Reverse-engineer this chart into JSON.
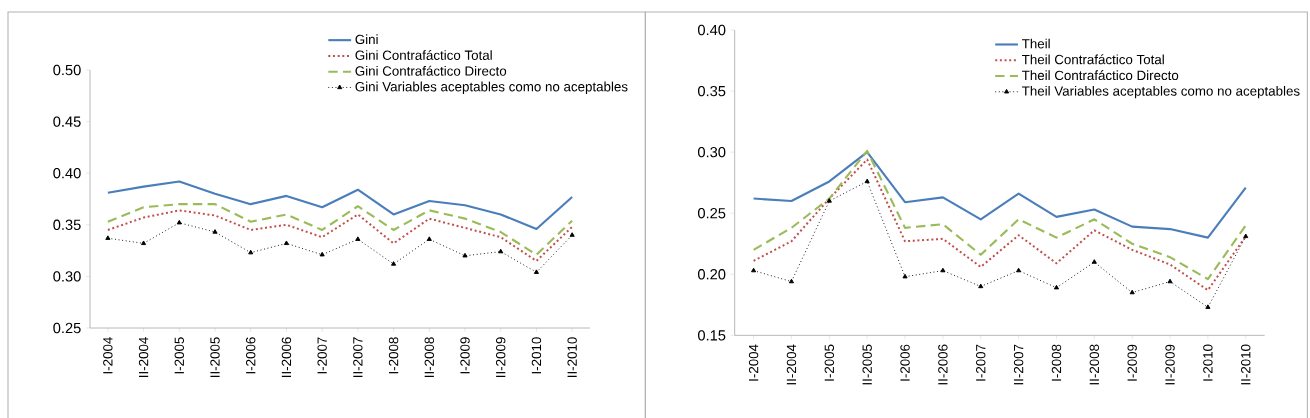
{
  "chart_data": [
    {
      "type": "line",
      "categories": [
        "I-2004",
        "II-2004",
        "I-2005",
        "II-2005",
        "I-2006",
        "II-2006",
        "I-2007",
        "II-2007",
        "I-2008",
        "II-2008",
        "I-2009",
        "II-2009",
        "I-2010",
        "II-2010"
      ],
      "series": [
        {
          "name": "Gini",
          "color": "#4a7ebb",
          "line_style": "solid",
          "marker": "none",
          "values": [
            0.381,
            0.387,
            0.392,
            0.38,
            0.37,
            0.378,
            0.367,
            0.384,
            0.36,
            0.373,
            0.369,
            0.36,
            0.346,
            0.377
          ]
        },
        {
          "name": "Gini Contrafáctico Total",
          "color": "#c0504d",
          "line_style": "dotted",
          "marker": "none",
          "values": [
            0.345,
            0.357,
            0.364,
            0.359,
            0.345,
            0.35,
            0.338,
            0.36,
            0.332,
            0.356,
            0.347,
            0.338,
            0.315,
            0.348
          ]
        },
        {
          "name": "Gini Contrafáctico Directo",
          "color": "#9bbb59",
          "line_style": "dashed",
          "marker": "none",
          "values": [
            0.353,
            0.367,
            0.37,
            0.37,
            0.353,
            0.36,
            0.345,
            0.368,
            0.345,
            0.364,
            0.356,
            0.343,
            0.321,
            0.354
          ]
        },
        {
          "name": "Gini Variables aceptables como no aceptables",
          "color": "#000000",
          "line_style": "dotted",
          "marker": "triangle",
          "values": [
            0.337,
            0.332,
            0.352,
            0.343,
            0.323,
            0.332,
            0.321,
            0.336,
            0.312,
            0.336,
            0.32,
            0.324,
            0.304,
            0.34
          ]
        }
      ],
      "ylim": [
        0.25,
        0.5
      ],
      "yticks": [
        {
          "value": 0.25,
          "label": "0.25"
        },
        {
          "value": 0.3,
          "label": "0.30"
        },
        {
          "value": 0.35,
          "label": "0.35"
        },
        {
          "value": 0.4,
          "label": "0.40"
        },
        {
          "value": 0.45,
          "label": "0.45"
        },
        {
          "value": 0.5,
          "label": "0.50"
        }
      ],
      "grid": false,
      "legend": "top right"
    },
    {
      "type": "line",
      "categories": [
        "I-2004",
        "II-2004",
        "I-2005",
        "II-2005",
        "I-2006",
        "II-2006",
        "I-2007",
        "II-2007",
        "I-2008",
        "II-2008",
        "I-2009",
        "II-2009",
        "I-2010",
        "II-2010"
      ],
      "series": [
        {
          "name": "Theil",
          "color": "#4a7ebb",
          "line_style": "solid",
          "marker": "none",
          "values": [
            0.262,
            0.26,
            0.276,
            0.3,
            0.259,
            0.263,
            0.245,
            0.266,
            0.247,
            0.253,
            0.239,
            0.237,
            0.23,
            0.271
          ]
        },
        {
          "name": "Theil Contrafáctico Total",
          "color": "#c0504d",
          "line_style": "dotted",
          "marker": "none",
          "values": [
            0.211,
            0.227,
            0.262,
            0.294,
            0.227,
            0.229,
            0.206,
            0.232,
            0.209,
            0.236,
            0.22,
            0.208,
            0.187,
            0.231
          ]
        },
        {
          "name": "Theil Contrafáctico Directo",
          "color": "#9bbb59",
          "line_style": "dashed",
          "marker": "none",
          "values": [
            0.22,
            0.238,
            0.262,
            0.301,
            0.238,
            0.241,
            0.216,
            0.245,
            0.23,
            0.245,
            0.225,
            0.214,
            0.196,
            0.24
          ]
        },
        {
          "name": "Theil Variables aceptables como no aceptables",
          "color": "#000000",
          "line_style": "dotted",
          "marker": "triangle",
          "values": [
            0.203,
            0.194,
            0.26,
            0.276,
            0.198,
            0.203,
            0.19,
            0.203,
            0.189,
            0.21,
            0.185,
            0.194,
            0.173,
            0.231
          ]
        }
      ],
      "ylim": [
        0.15,
        0.4
      ],
      "yticks": [
        {
          "value": 0.15,
          "label": "0.15"
        },
        {
          "value": 0.2,
          "label": "0.20"
        },
        {
          "value": 0.25,
          "label": "0.25"
        },
        {
          "value": 0.3,
          "label": "0.30"
        },
        {
          "value": 0.35,
          "label": "0.35"
        },
        {
          "value": 0.4,
          "label": "0.40"
        }
      ],
      "grid": false,
      "legend": "top right"
    }
  ]
}
